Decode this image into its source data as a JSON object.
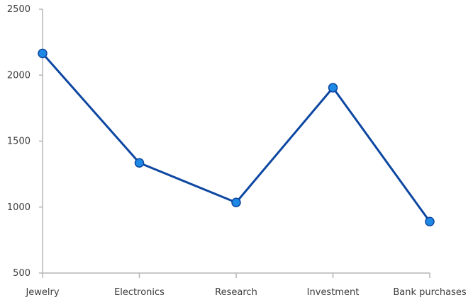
{
  "chart_data": {
    "type": "line",
    "categories": [
      "Jewelry",
      "Electronics",
      "Research",
      "Investment",
      "Bank purchases"
    ],
    "series": [
      {
        "values": [
          2165,
          1335,
          1035,
          1905,
          890
        ]
      }
    ],
    "ylim": [
      500,
      2500
    ],
    "yticks": [
      500,
      1000,
      1500,
      2000,
      2500
    ],
    "grid": false,
    "legend": "none",
    "colors": {
      "line": "#0d47a1",
      "marker_fill": "#1e88e5",
      "marker_stroke": "#0d47a1",
      "axis": "#b5b5b5",
      "text": "#3c3c3c"
    }
  }
}
